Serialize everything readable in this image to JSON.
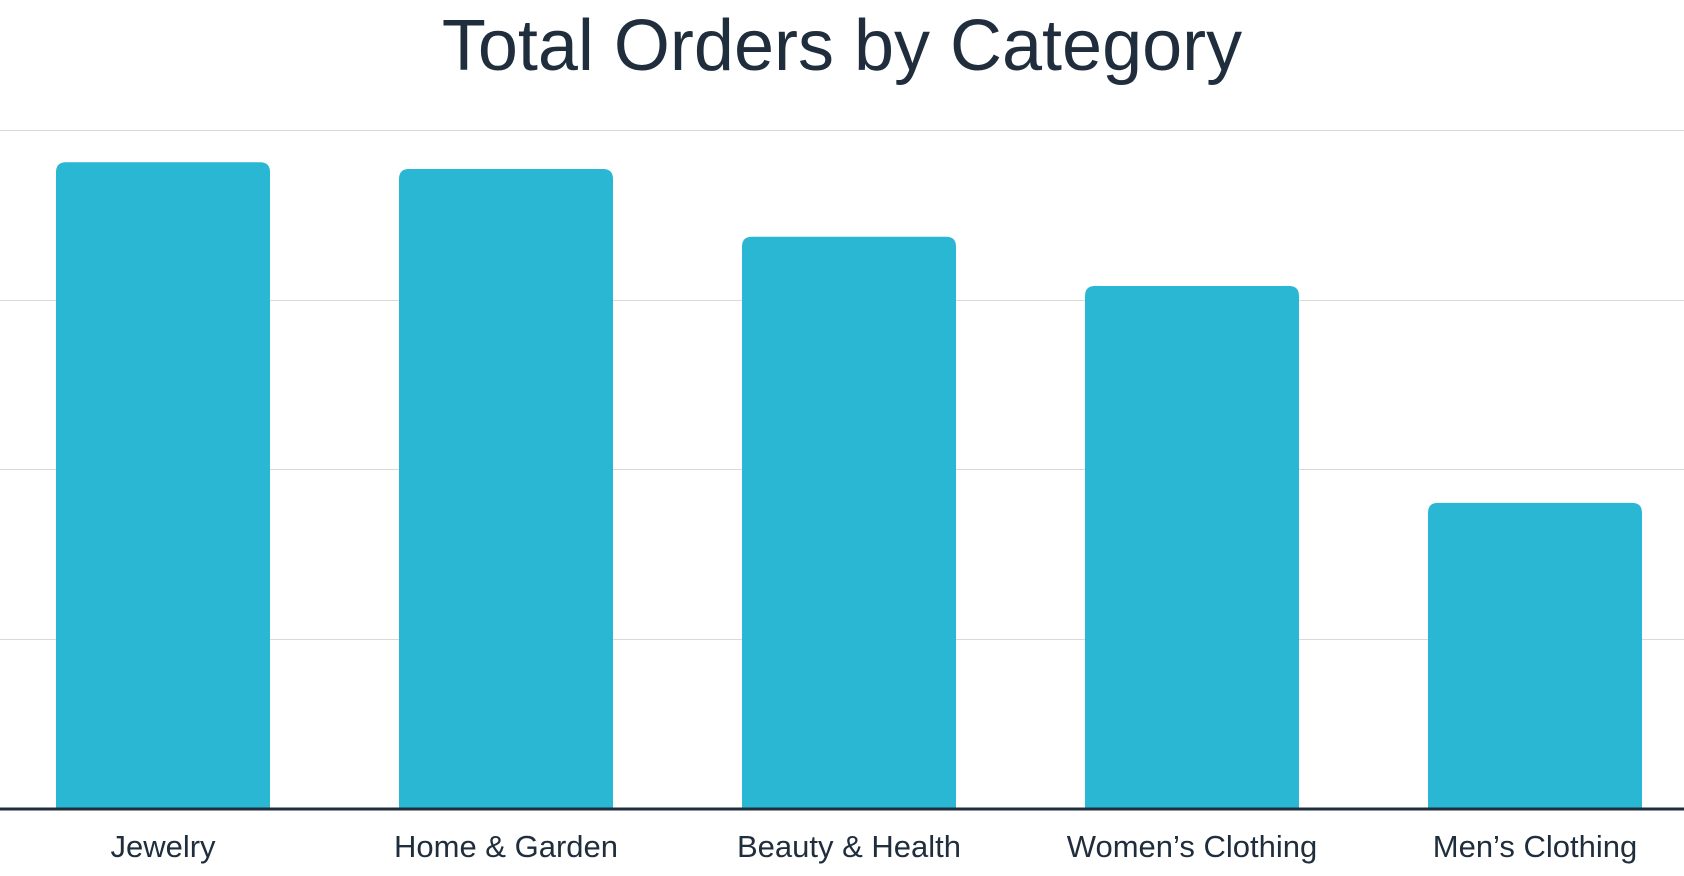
{
  "chart_data": {
    "type": "bar",
    "title": "Total Orders by Category",
    "xlabel": "",
    "ylabel": "",
    "categories": [
      "Jewelry",
      "Home & Garden",
      "Beauty & Health",
      "Women’s Clothing",
      "Men’s Clothing"
    ],
    "values": [
      3.81,
      3.77,
      3.37,
      3.08,
      1.8
    ],
    "ylim": [
      0,
      4
    ],
    "grid": true,
    "y_tick_labels_visible": false,
    "legend": "none",
    "colors": {
      "bar": "#29b7d4",
      "grid": "#d9d9d9",
      "axis": "#1f2d3d",
      "text": "#1f2d3d"
    }
  }
}
